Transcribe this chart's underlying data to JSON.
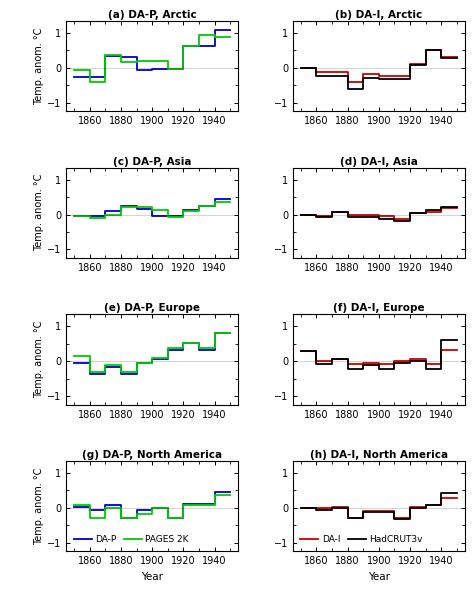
{
  "decades": [
    1850,
    1860,
    1870,
    1880,
    1890,
    1900,
    1910,
    1920,
    1930,
    1940,
    1950
  ],
  "xlim": [
    1845,
    1955
  ],
  "xticks": [
    1860,
    1880,
    1900,
    1920,
    1940
  ],
  "ylim": [
    -1.25,
    1.35
  ],
  "yticks": [
    -1,
    0,
    1
  ],
  "panels": [
    {
      "title": "(a) DA-P, Arctic",
      "series": [
        {
          "label": "DA-P",
          "color": "#0000cc",
          "values": [
            -0.25,
            -0.25,
            0.33,
            0.32,
            -0.05,
            -0.02,
            -0.02,
            0.63,
            0.63,
            1.1,
            1.1
          ]
        },
        {
          "label": "PAGES 2K",
          "color": "#00cc00",
          "values": [
            -0.05,
            -0.42,
            0.36,
            0.17,
            0.2,
            0.2,
            -0.02,
            0.63,
            0.95,
            0.9,
            0.9
          ]
        }
      ]
    },
    {
      "title": "(b) DA-I, Arctic",
      "series": [
        {
          "label": "DA-I",
          "color": "#cc0000",
          "values": [
            0.0,
            -0.12,
            -0.12,
            -0.42,
            -0.18,
            -0.22,
            -0.22,
            0.12,
            0.5,
            0.32,
            0.32
          ]
        },
        {
          "label": "HadCRUT3v",
          "color": "#000000",
          "values": [
            0.0,
            -0.22,
            -0.22,
            -0.62,
            -0.28,
            -0.32,
            -0.32,
            0.08,
            0.5,
            0.28,
            0.28
          ]
        }
      ]
    },
    {
      "title": "(c) DA-P, Asia",
      "series": [
        {
          "label": "DA-P",
          "color": "#0000cc",
          "values": [
            -0.05,
            -0.05,
            0.1,
            0.25,
            0.15,
            -0.05,
            -0.05,
            0.12,
            0.25,
            0.45,
            0.45
          ]
        },
        {
          "label": "PAGES 2K",
          "color": "#00cc00",
          "values": [
            -0.05,
            -0.1,
            0.0,
            0.22,
            0.22,
            0.12,
            -0.08,
            0.1,
            0.25,
            0.35,
            0.35
          ]
        }
      ]
    },
    {
      "title": "(d) DA-I, Asia",
      "series": [
        {
          "label": "DA-I",
          "color": "#cc0000",
          "values": [
            0.0,
            -0.05,
            0.08,
            0.0,
            0.0,
            -0.05,
            -0.12,
            0.05,
            0.08,
            0.18,
            0.18
          ]
        },
        {
          "label": "HadCRUT3v",
          "color": "#000000",
          "values": [
            0.0,
            -0.08,
            0.08,
            -0.08,
            -0.08,
            -0.12,
            -0.18,
            0.05,
            0.12,
            0.22,
            0.22
          ]
        }
      ]
    },
    {
      "title": "(e) DA-P, Europe",
      "series": [
        {
          "label": "DA-P",
          "color": "#0000cc",
          "values": [
            -0.05,
            -0.38,
            -0.18,
            -0.38,
            -0.05,
            0.05,
            0.32,
            0.52,
            0.32,
            0.82,
            0.82
          ]
        },
        {
          "label": "PAGES 2K",
          "color": "#00cc00",
          "values": [
            0.15,
            -0.32,
            -0.12,
            -0.32,
            -0.05,
            0.1,
            0.38,
            0.52,
            0.38,
            0.82,
            0.82
          ]
        }
      ]
    },
    {
      "title": "(f) DA-I, Europe",
      "series": [
        {
          "label": "DA-I",
          "color": "#cc0000",
          "values": [
            0.28,
            0.0,
            0.05,
            -0.08,
            -0.05,
            -0.08,
            0.0,
            0.05,
            -0.08,
            0.32,
            0.32
          ]
        },
        {
          "label": "HadCRUT3v",
          "color": "#000000",
          "values": [
            0.28,
            -0.08,
            0.05,
            -0.22,
            -0.12,
            -0.22,
            -0.05,
            0.0,
            -0.22,
            0.62,
            0.62
          ]
        }
      ]
    },
    {
      "title": "(g) DA-P, North America",
      "series": [
        {
          "label": "DA-P",
          "color": "#0000cc",
          "values": [
            0.02,
            -0.05,
            0.08,
            -0.28,
            -0.05,
            0.0,
            -0.28,
            0.1,
            0.1,
            0.45,
            0.45
          ]
        },
        {
          "label": "PAGES 2K",
          "color": "#00cc00",
          "values": [
            0.08,
            -0.28,
            0.0,
            -0.28,
            -0.18,
            0.0,
            -0.28,
            0.08,
            0.08,
            0.38,
            0.32
          ]
        }
      ]
    },
    {
      "title": "(h) DA-I, North America",
      "series": [
        {
          "label": "DA-I",
          "color": "#cc0000",
          "values": [
            0.0,
            -0.02,
            0.02,
            -0.28,
            -0.08,
            -0.08,
            -0.28,
            0.02,
            0.08,
            0.28,
            0.28
          ]
        },
        {
          "label": "HadCRUT3v",
          "color": "#000000",
          "values": [
            0.0,
            -0.05,
            0.0,
            -0.28,
            -0.12,
            -0.12,
            -0.32,
            0.0,
            0.08,
            0.42,
            0.42
          ]
        }
      ]
    }
  ],
  "left_legend": [
    {
      "label": "DA-P",
      "color": "#0000cc"
    },
    {
      "label": "PAGES 2K",
      "color": "#00cc00"
    }
  ],
  "right_legend": [
    {
      "label": "DA-I",
      "color": "#cc0000"
    },
    {
      "label": "HadCRUT3v",
      "color": "#000000"
    }
  ],
  "ylabel": "Temp. anom. °C",
  "xlabel": "Year",
  "bg_color": "#f5f5f0"
}
